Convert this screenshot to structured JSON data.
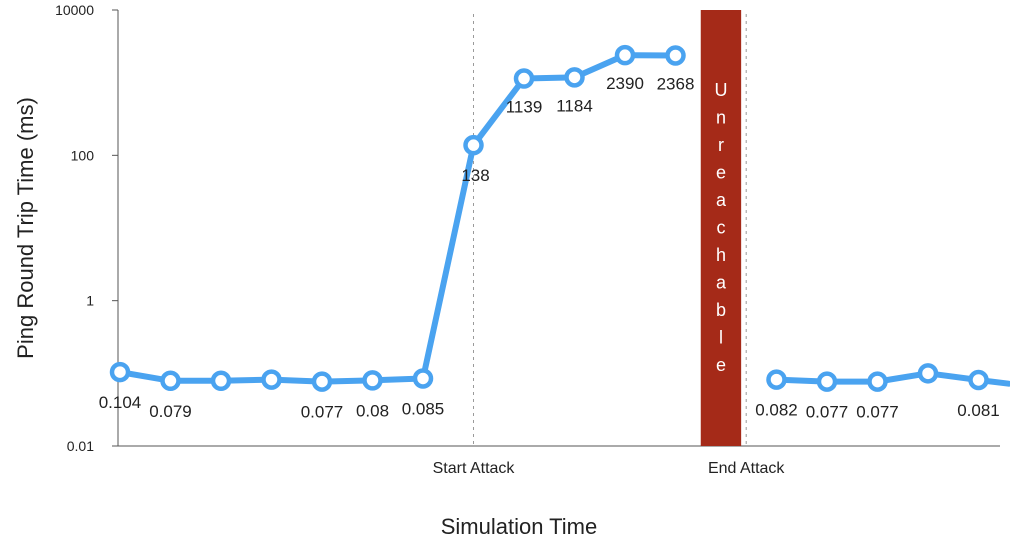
{
  "chart_data": {
    "type": "line",
    "xlabel": "Simulation Time",
    "ylabel": "Ping Round Trip Time (ms)",
    "yscale": "log",
    "ylim": [
      0.01,
      10000
    ],
    "y_ticks": [
      "0.01",
      "1",
      "100",
      "10000"
    ],
    "grid": false,
    "series_color": "#4aa3f0",
    "band_color": "#a52a18",
    "events": [
      {
        "label": "Start Attack",
        "x": 7
      },
      {
        "label": "End Attack",
        "x": 12.4
      }
    ],
    "unreachable": {
      "label": "Unreachable",
      "x_start": 11.5,
      "x_end": 12.3
    },
    "segments": [
      {
        "x": [
          0,
          1,
          2,
          3,
          4,
          5,
          6,
          7,
          8,
          9,
          10,
          11
        ],
        "values": [
          0.104,
          0.079,
          0.079,
          0.082,
          0.077,
          0.08,
          0.085,
          138,
          1139,
          1184,
          2390,
          2368
        ],
        "labels": [
          "0.104",
          "0.079",
          "",
          "",
          "0.077",
          "0.08",
          "0.085",
          "138",
          "1139",
          "1184",
          "2390",
          "2368"
        ]
      },
      {
        "x": [
          13,
          14,
          15,
          16,
          17,
          17.6
        ],
        "values": [
          0.082,
          0.077,
          0.077,
          0.1,
          0.081,
          0.072
        ],
        "labels": [
          "0.082",
          "0.077",
          "0.077",
          "",
          "0.081",
          ""
        ]
      }
    ]
  }
}
